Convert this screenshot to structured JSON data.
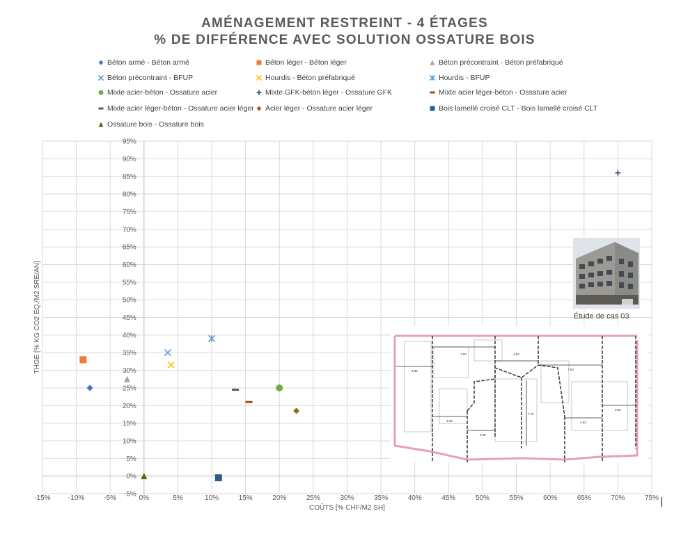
{
  "chart_data": {
    "type": "scatter",
    "title": "AMÉNAGEMENT RESTREINT - 4 ÉTAGES",
    "subtitle": "% DE DIFFÉRENCE AVEC SOLUTION OSSATURE BOIS",
    "xlabel": "COÛTS [% CHF/M2 SH]",
    "ylabel": "THGE [% KG CO2 ÉQ./M2 SRE/AN]",
    "xlim": [
      -15,
      75
    ],
    "ylim": [
      -5,
      95
    ],
    "x_ticks": [
      -15,
      -10,
      -5,
      0,
      5,
      10,
      15,
      20,
      25,
      30,
      35,
      40,
      45,
      50,
      55,
      60,
      65,
      70,
      75
    ],
    "y_ticks": [
      -5,
      0,
      5,
      10,
      15,
      20,
      25,
      30,
      35,
      40,
      45,
      50,
      55,
      60,
      65,
      70,
      75,
      80,
      85,
      90,
      95
    ],
    "x_tick_labels": [
      "-15%",
      "-10%",
      "-5%",
      "0%",
      "5%",
      "10%",
      "15%",
      "20%",
      "25%",
      "30%",
      "35%",
      "40%",
      "45%",
      "50%",
      "55%",
      "60%",
      "65%",
      "70%",
      "75%"
    ],
    "y_tick_labels": [
      "-5%",
      "0%",
      "5%",
      "10%",
      "15%",
      "20%",
      "25%",
      "30%",
      "35%",
      "40%",
      "45%",
      "50%",
      "55%",
      "60%",
      "65%",
      "70%",
      "75%",
      "80%",
      "85%",
      "90%",
      "95%"
    ],
    "grid": true,
    "legend_position": "top",
    "series": [
      {
        "name": "Béton armé - Béton armé",
        "marker": "diamond",
        "color": "#4472C4",
        "x": -8,
        "y": 25
      },
      {
        "name": "Béton léger - Béton léger",
        "marker": "square",
        "color": "#ED7D31",
        "x": -9,
        "y": 33
      },
      {
        "name": "Béton précontraint - Béton préfabriqué",
        "marker": "triangle",
        "color": "#A5A5A5",
        "x": -2.5,
        "y": 27.5
      },
      {
        "name": "Béton précontraint - BFUP",
        "marker": "x",
        "color": "#5B9BD5",
        "x": 3.5,
        "y": 35
      },
      {
        "name": "Hourdis  - Béton préfabriqué",
        "marker": "x",
        "color": "#FFC000",
        "x": 4,
        "y": 31.5
      },
      {
        "name": "Hourdis  - BFUP",
        "marker": "star",
        "color": "#5B9BD5",
        "x": 10,
        "y": 39
      },
      {
        "name": "Mixte acier-béton - Ossature acier",
        "marker": "circle",
        "color": "#70AD47",
        "x": 20,
        "y": 25
      },
      {
        "name": "Mixte GFK-béton léger - Ossature GFK",
        "marker": "plus",
        "color": "#264478",
        "x": 70,
        "y": 86
      },
      {
        "name": "Mixte acier léger-béton - Ossature acier",
        "marker": "dash",
        "color": "#9E480E",
        "x": 15.5,
        "y": 21
      },
      {
        "name": "Mixte acier léger-béton - Ossature acier léger",
        "marker": "dash",
        "color": "#595959",
        "x": 13.5,
        "y": 24.5
      },
      {
        "name": "Acier léger - Ossature acier léger",
        "marker": "diamond",
        "color": "#8C6D18",
        "x": 22.5,
        "y": 18.5
      },
      {
        "name": "Bois lamellé croisé CLT - Bois lamellé croisé CLT",
        "marker": "square",
        "color": "#2E5C8A",
        "x": 11,
        "y": -0.5
      },
      {
        "name": "Ossature bois - Ossature bois",
        "marker": "triangle",
        "color": "#4E6A1E",
        "x": 0,
        "y": 0
      }
    ]
  },
  "inset": {
    "caption": "Étude de cas 03",
    "dimensions": [
      "7.00",
      "4.90",
      "7.00",
      "3.85",
      "4.93",
      "2.96",
      "7.76",
      "4.82",
      "3.80"
    ]
  }
}
